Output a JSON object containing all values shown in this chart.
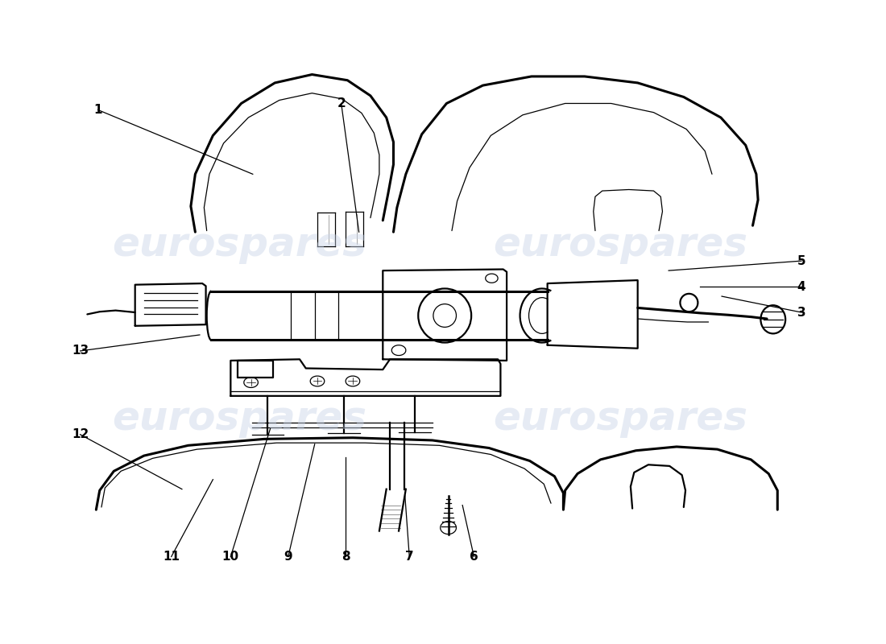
{
  "background_color": "#ffffff",
  "line_color": "#000000",
  "watermark_text": "eurospares",
  "watermark_color": "#c8d4e8",
  "watermark_alpha": 0.45,
  "lw_main": 1.6,
  "lw_thin": 0.9,
  "lw_thick": 2.2,
  "label_fontsize": 11,
  "leaders": {
    "1": {
      "lpos": [
        0.11,
        0.83
      ],
      "epos": [
        0.285,
        0.73
      ]
    },
    "2": {
      "lpos": [
        0.385,
        0.84
      ],
      "epos": [
        0.405,
        0.64
      ]
    },
    "3": {
      "lpos": [
        0.905,
        0.515
      ],
      "epos": [
        0.815,
        0.54
      ]
    },
    "4": {
      "lpos": [
        0.905,
        0.555
      ],
      "epos": [
        0.79,
        0.555
      ]
    },
    "5": {
      "lpos": [
        0.905,
        0.595
      ],
      "epos": [
        0.755,
        0.58
      ]
    },
    "6": {
      "lpos": [
        0.535,
        0.135
      ],
      "epos": [
        0.522,
        0.215
      ]
    },
    "7": {
      "lpos": [
        0.462,
        0.135
      ],
      "epos": [
        0.457,
        0.23
      ]
    },
    "8": {
      "lpos": [
        0.39,
        0.135
      ],
      "epos": [
        0.39,
        0.29
      ]
    },
    "9": {
      "lpos": [
        0.325,
        0.135
      ],
      "epos": [
        0.355,
        0.31
      ]
    },
    "10": {
      "lpos": [
        0.26,
        0.135
      ],
      "epos": [
        0.305,
        0.335
      ]
    },
    "11": {
      "lpos": [
        0.193,
        0.135
      ],
      "epos": [
        0.24,
        0.255
      ]
    },
    "12": {
      "lpos": [
        0.09,
        0.325
      ],
      "epos": [
        0.205,
        0.24
      ]
    },
    "13": {
      "lpos": [
        0.09,
        0.455
      ],
      "epos": [
        0.225,
        0.48
      ]
    }
  }
}
